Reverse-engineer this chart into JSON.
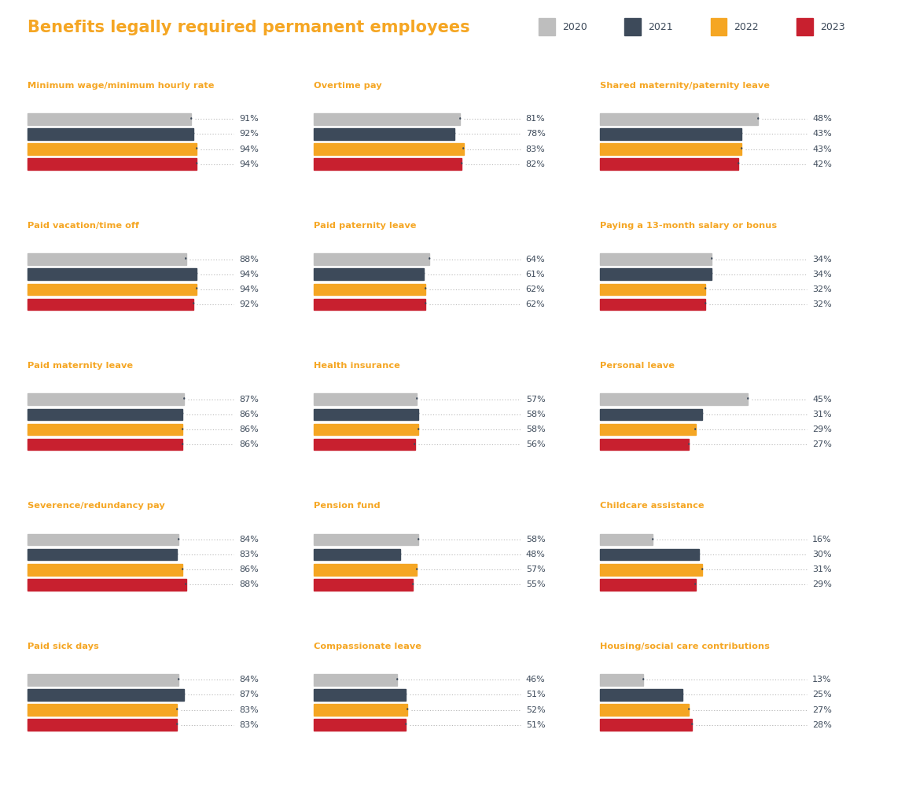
{
  "title": "Benefits legally required permanent employees",
  "title_color": "#F5A623",
  "legend_years": [
    "2020",
    "2021",
    "2022",
    "2023"
  ],
  "bar_colors": [
    "#BEBEBE",
    "#3D4A5A",
    "#F5A623",
    "#C8202F"
  ],
  "text_color": "#3D4A5A",
  "subtitle_color": "#F5A623",
  "dot_line_color": "#AAAAAA",
  "charts": [
    {
      "title": "Minimum wage/minimum hourly rate",
      "values": [
        91,
        92,
        94,
        94
      ]
    },
    {
      "title": "Overtime pay",
      "values": [
        81,
        78,
        83,
        82
      ]
    },
    {
      "title": "Shared maternity/paternity leave",
      "values": [
        48,
        43,
        43,
        42
      ]
    },
    {
      "title": "Paid vacation/time off",
      "values": [
        88,
        94,
        94,
        92
      ]
    },
    {
      "title": "Paid paternity leave",
      "values": [
        64,
        61,
        62,
        62
      ]
    },
    {
      "title": "Paying a 13-month salary or bonus",
      "values": [
        34,
        34,
        32,
        32
      ]
    },
    {
      "title": "Paid maternity leave",
      "values": [
        87,
        86,
        86,
        86
      ]
    },
    {
      "title": "Health insurance",
      "values": [
        57,
        58,
        58,
        56
      ]
    },
    {
      "title": "Personal leave",
      "values": [
        45,
        31,
        29,
        27
      ]
    },
    {
      "title": "Severence/redundancy pay",
      "values": [
        84,
        83,
        86,
        88
      ]
    },
    {
      "title": "Pension fund",
      "values": [
        58,
        48,
        57,
        55
      ]
    },
    {
      "title": "Childcare assistance",
      "values": [
        16,
        30,
        31,
        29
      ]
    },
    {
      "title": "Paid sick days",
      "values": [
        84,
        87,
        83,
        83
      ]
    },
    {
      "title": "Compassionate leave",
      "values": [
        46,
        51,
        52,
        51
      ]
    },
    {
      "title": "Housing/social care contributions",
      "values": [
        13,
        25,
        27,
        28
      ]
    }
  ],
  "col_max_vals": [
    100,
    100,
    55,
    100,
    70,
    40,
    100,
    65,
    38
  ]
}
